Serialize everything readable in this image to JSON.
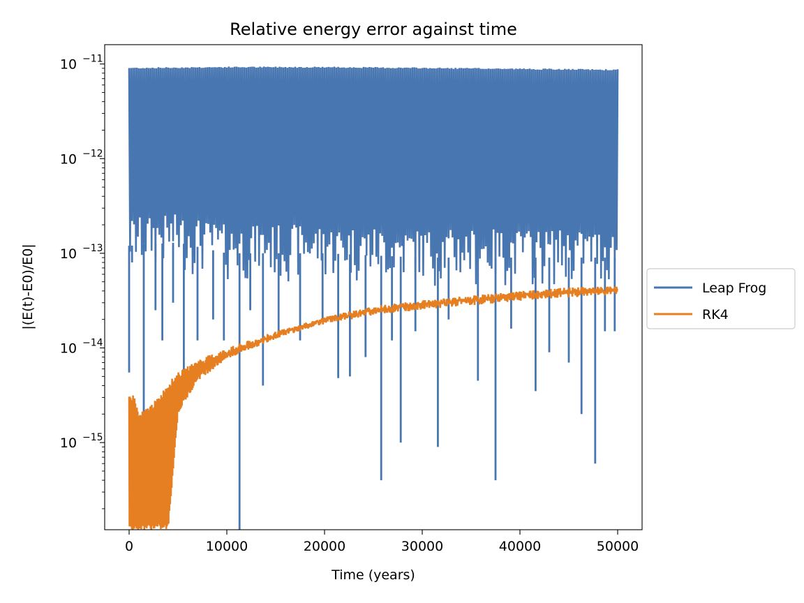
{
  "chart_data": {
    "type": "line",
    "title": "Relative energy error against time",
    "xlabel": "Time (years)",
    "ylabel": "|(E(t)-E0)/E0|",
    "xlim": [
      -2500,
      52500
    ],
    "ylim": [
      1.2e-16,
      1.6e-11
    ],
    "yscale": "log",
    "x_ticks": [
      0,
      10000,
      20000,
      30000,
      40000,
      50000
    ],
    "x_tick_labels": [
      "0",
      "10000",
      "20000",
      "30000",
      "40000",
      "50000"
    ],
    "y_ticks": [
      {
        "value": 1e-11,
        "base": "10",
        "exp": "−11"
      },
      {
        "value": 1e-12,
        "base": "10",
        "exp": "−12"
      },
      {
        "value": 1e-13,
        "base": "10",
        "exp": "−13"
      },
      {
        "value": 1e-14,
        "base": "10",
        "exp": "−14"
      },
      {
        "value": 1e-15,
        "base": "10",
        "exp": "−15"
      }
    ],
    "grid": false,
    "legend_position": "center-right, outside axes",
    "series": [
      {
        "name": "Leap Frog",
        "color": "#4876b0",
        "envelope": {
          "x": [
            0,
            5000,
            10000,
            20000,
            30000,
            40000,
            50000
          ],
          "upper": [
            9.2e-12,
            9.3e-12,
            9.4e-12,
            9.4e-12,
            9.2e-12,
            9e-12,
            8.8e-12
          ],
          "typical_lower": [
            6e-14,
            6.5e-14,
            5e-14,
            5e-14,
            4.5e-14,
            4.5e-14,
            4.5e-14
          ]
        },
        "dips": [
          {
            "x": 0,
            "y": 5.5e-15
          },
          {
            "x": 300,
            "y": 8e-14
          },
          {
            "x": 1500,
            "y": 1.5e-15
          },
          {
            "x": 2700,
            "y": 2.5e-14
          },
          {
            "x": 3400,
            "y": 1.2e-14
          },
          {
            "x": 4500,
            "y": 3e-14
          },
          {
            "x": 5600,
            "y": 3.5e-15
          },
          {
            "x": 7000,
            "y": 1.2e-14
          },
          {
            "x": 8600,
            "y": 2e-14
          },
          {
            "x": 9700,
            "y": 1.2e-14
          },
          {
            "x": 11300,
            "y": 1.2e-16
          },
          {
            "x": 12400,
            "y": 2.5e-14
          },
          {
            "x": 13700,
            "y": 4e-15
          },
          {
            "x": 15300,
            "y": 1.5e-14
          },
          {
            "x": 17500,
            "y": 1.2e-14
          },
          {
            "x": 19800,
            "y": 2e-14
          },
          {
            "x": 21400,
            "y": 4.8e-15
          },
          {
            "x": 22600,
            "y": 5e-15
          },
          {
            "x": 24200,
            "y": 8e-15
          },
          {
            "x": 25800,
            "y": 4e-16
          },
          {
            "x": 26900,
            "y": 1.2e-14
          },
          {
            "x": 27800,
            "y": 1e-15
          },
          {
            "x": 29300,
            "y": 1.5e-14
          },
          {
            "x": 31600,
            "y": 9e-16
          },
          {
            "x": 32700,
            "y": 2e-14
          },
          {
            "x": 35700,
            "y": 4.5e-15
          },
          {
            "x": 37500,
            "y": 4e-16
          },
          {
            "x": 39100,
            "y": 1.6e-14
          },
          {
            "x": 41600,
            "y": 3.5e-15
          },
          {
            "x": 43000,
            "y": 9e-15
          },
          {
            "x": 45000,
            "y": 7e-15
          },
          {
            "x": 46300,
            "y": 2e-15
          },
          {
            "x": 47700,
            "y": 6e-16
          },
          {
            "x": 48700,
            "y": 1.5e-14
          },
          {
            "x": 49700,
            "y": 1.5e-14
          }
        ]
      },
      {
        "name": "RK4",
        "color": "#e57f22",
        "envelope": {
          "x": [
            0,
            500,
            1000,
            2000,
            3000,
            4000,
            5000,
            7000,
            10000,
            15000,
            20000,
            25000,
            30000,
            35000,
            40000,
            45000,
            50000
          ],
          "upper": [
            3.2e-15,
            3.2e-15,
            2e-15,
            2.4e-15,
            3e-15,
            4.3e-15,
            5.5e-15,
            7.5e-15,
            1e-14,
            1.5e-14,
            2.1e-14,
            2.6e-14,
            3e-14,
            3.3e-14,
            3.7e-14,
            4e-14,
            4.3e-14
          ],
          "lower": [
            1.2e-16,
            1.2e-16,
            1.2e-16,
            1.2e-16,
            1.2e-16,
            1.2e-16,
            2e-15,
            4.5e-15,
            7.5e-15,
            1.25e-14,
            1.85e-14,
            2.4e-14,
            2.8e-14,
            3.1e-14,
            3.45e-14,
            3.8e-14,
            3.9e-14
          ]
        }
      }
    ]
  }
}
